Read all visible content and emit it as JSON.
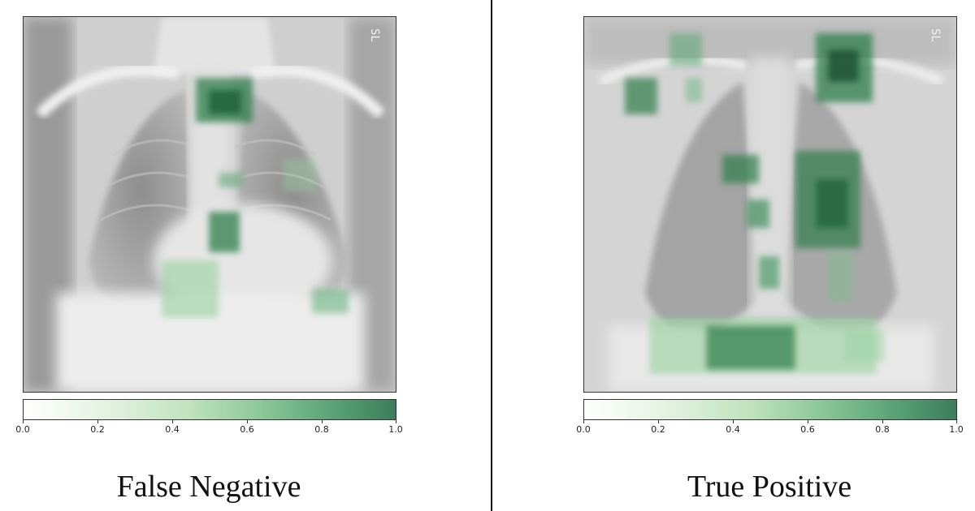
{
  "panels": [
    {
      "caption": "False Negative",
      "marker": "SL",
      "colorbar": {
        "ticks": [
          "0.0",
          "0.2",
          "0.4",
          "0.6",
          "0.8",
          "1.0"
        ],
        "range": [
          0.0,
          1.0
        ],
        "colors": [
          "#ffffff",
          "#3d7d5a"
        ]
      }
    },
    {
      "caption": "True Positive",
      "marker": "SL",
      "colorbar": {
        "ticks": [
          "0.0",
          "0.2",
          "0.4",
          "0.6",
          "0.8",
          "1.0"
        ],
        "range": [
          0.0,
          1.0
        ],
        "colors": [
          "#ffffff",
          "#3d7d5a"
        ]
      }
    }
  ]
}
